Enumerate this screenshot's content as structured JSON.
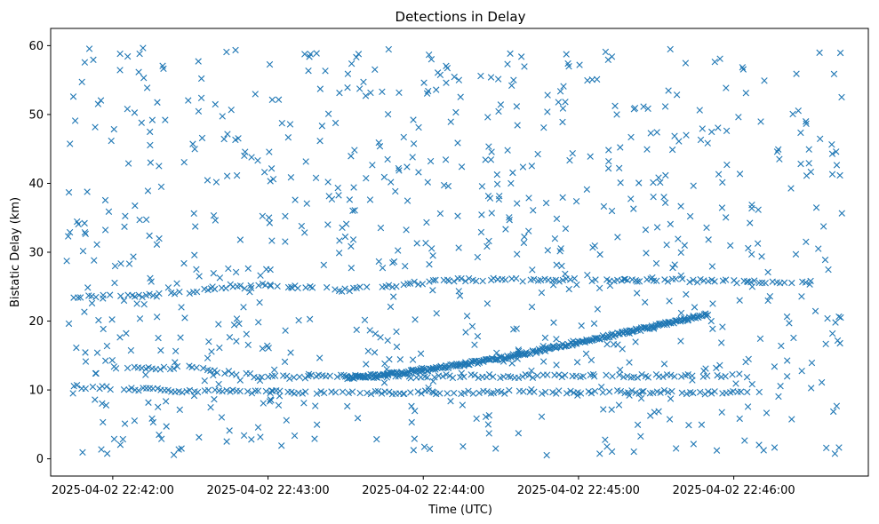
{
  "chart_data": {
    "type": "scatter",
    "title": "Detections in Delay",
    "xlabel": "Time (UTC)",
    "ylabel": "Bistatic Delay (km)",
    "marker": "x",
    "color": "#1f77b4",
    "grid": false,
    "legend": "none",
    "xlim": [
      "2025-04-02 22:41:36",
      "2025-04-02 22:46:52"
    ],
    "ylim": [
      -2.5,
      62.5
    ],
    "x_ticks": [
      "2025-04-02 22:42:00",
      "2025-04-02 22:43:00",
      "2025-04-02 22:44:00",
      "2025-04-02 22:45:00",
      "2025-04-02 22:46:00"
    ],
    "y_ticks": [
      0,
      10,
      20,
      30,
      40,
      50,
      60
    ],
    "time_range": [
      "2025-04-02 22:41:42",
      "2025-04-02 22:46:42"
    ],
    "tracks": [
      {
        "description": "curved track",
        "x": [
          "2025-04-02 22:43:30",
          "2025-04-02 22:43:50",
          "2025-04-02 22:44:10",
          "2025-04-02 22:44:30",
          "2025-04-02 22:44:50",
          "2025-04-02 22:45:10",
          "2025-04-02 22:45:30",
          "2025-04-02 22:45:50"
        ],
        "y": [
          11.7,
          12.4,
          13.4,
          14.6,
          16.1,
          17.7,
          19.3,
          21.0
        ]
      },
      {
        "description": "track near 10 km",
        "x": [
          "2025-04-02 22:41:45",
          "2025-04-02 22:42:30",
          "2025-04-02 22:43:20",
          "2025-04-02 22:44:30",
          "2025-04-02 22:45:30",
          "2025-04-02 22:46:10"
        ],
        "y": [
          10.5,
          9.8,
          9.6,
          9.7,
          9.7,
          9.5
        ]
      },
      {
        "description": "track near 12 km",
        "x": [
          "2025-04-02 22:42:00",
          "2025-04-02 22:42:30",
          "2025-04-02 22:43:00",
          "2025-04-02 22:43:30",
          "2025-04-02 22:45:40",
          "2025-04-02 22:46:05"
        ],
        "y": [
          13.0,
          13.3,
          11.8,
          12.0,
          12.0,
          12.1
        ]
      },
      {
        "description": "track near 24-26 km",
        "x": [
          "2025-04-02 22:41:45",
          "2025-04-02 22:42:15",
          "2025-04-02 22:43:00",
          "2025-04-02 22:43:30",
          "2025-04-02 22:44:10",
          "2025-04-02 22:44:50",
          "2025-04-02 22:45:30",
          "2025-04-02 22:46:30"
        ],
        "y": [
          23.5,
          23.7,
          25.3,
          24.5,
          26.0,
          26.0,
          26.0,
          25.5
        ]
      }
    ]
  }
}
